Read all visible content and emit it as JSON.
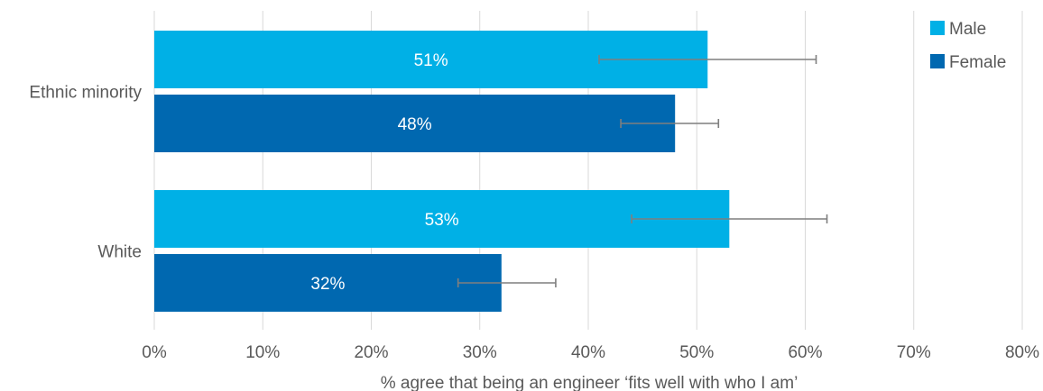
{
  "chart_data": {
    "type": "bar",
    "orientation": "horizontal",
    "categories": [
      "Ethnic minority",
      "White"
    ],
    "series": [
      {
        "name": "Male",
        "color": "#00B0E6",
        "values": [
          51,
          53
        ],
        "error_low": [
          41,
          44
        ],
        "error_high": [
          61,
          62
        ]
      },
      {
        "name": "Female",
        "color": "#0068B0",
        "values": [
          48,
          32
        ],
        "error_low": [
          43,
          28
        ],
        "error_high": [
          52,
          37
        ]
      }
    ],
    "data_labels": [
      [
        "51%",
        "53%"
      ],
      [
        "48%",
        "32%"
      ]
    ],
    "xlim": [
      0,
      80
    ],
    "xticks": [
      0,
      10,
      20,
      30,
      40,
      50,
      60,
      70,
      80
    ],
    "xtick_labels": [
      "0%",
      "10%",
      "20%",
      "30%",
      "40%",
      "50%",
      "60%",
      "70%",
      "80%"
    ],
    "xlabel": "% agree that being an engineer ‘fits well with who I am’",
    "ylabel": "",
    "title": "",
    "grid": true,
    "legend_position": "top-right",
    "error_bar_color": "#7F7F7F",
    "grid_color": "#D9D9D9"
  }
}
